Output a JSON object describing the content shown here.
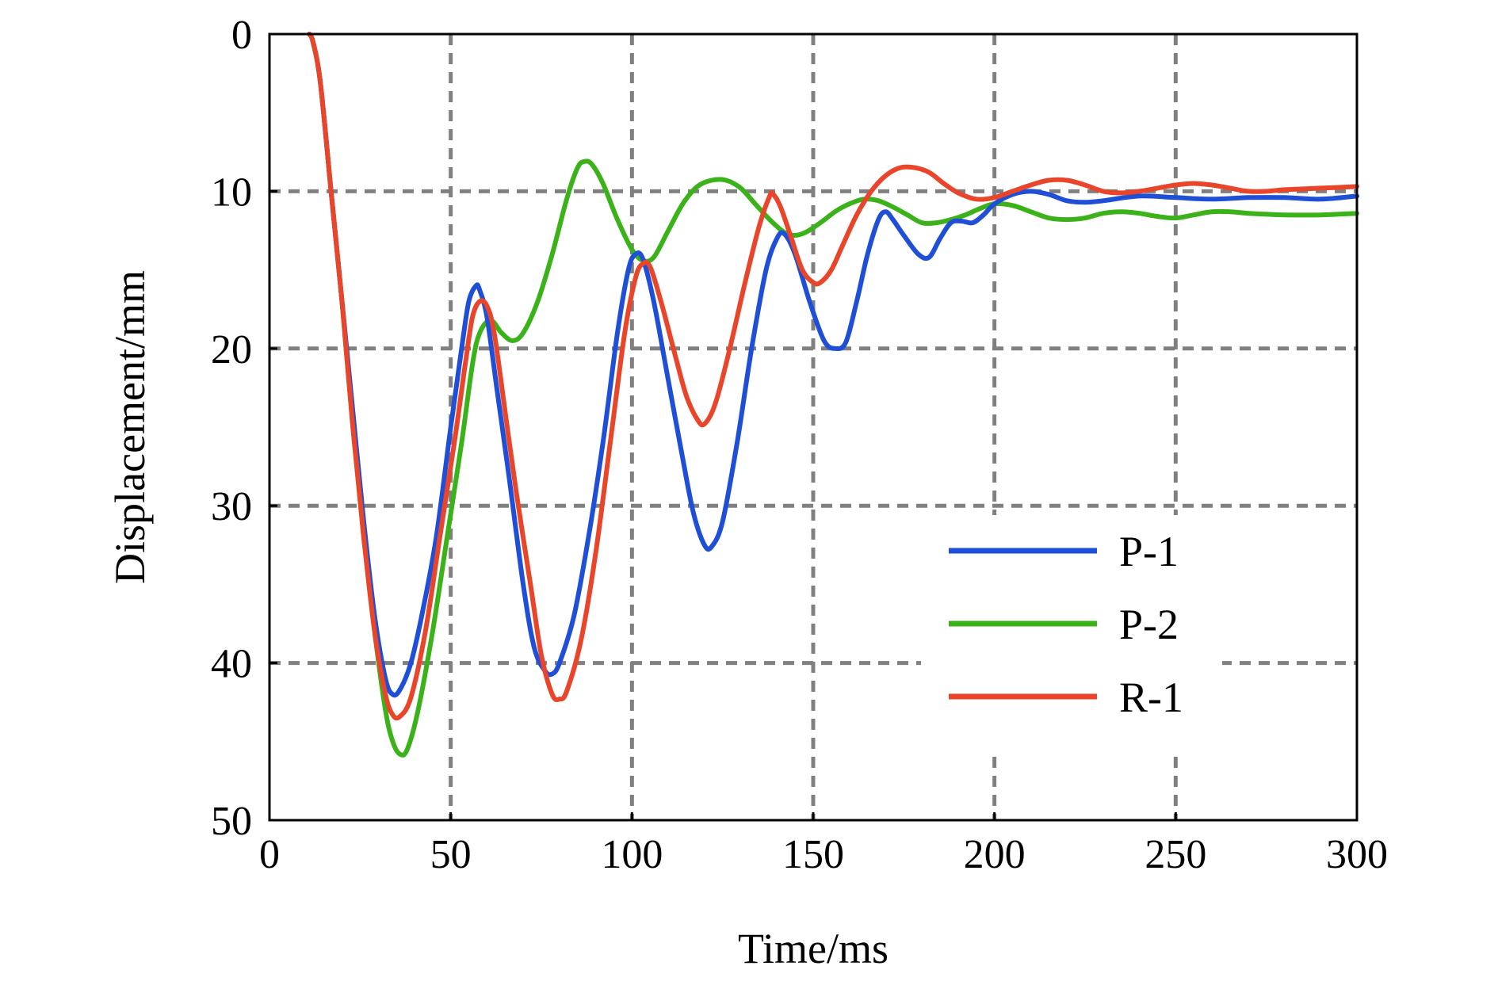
{
  "chart_data": {
    "type": "line",
    "xlabel": "Time/ms",
    "ylabel": "Displacement/mm",
    "xlim": [
      0,
      300
    ],
    "ylim": [
      0,
      50
    ],
    "y_inverted": true,
    "xticks": [
      0,
      50,
      100,
      150,
      200,
      250,
      300
    ],
    "yticks": [
      0,
      10,
      20,
      30,
      40,
      50
    ],
    "grid": true,
    "legend_position": "lower-right",
    "series": [
      {
        "name": "P-1",
        "color": "#1f4fd6",
        "points": [
          [
            11,
            0
          ],
          [
            12,
            0.5
          ],
          [
            14,
            3
          ],
          [
            17,
            10
          ],
          [
            20,
            17
          ],
          [
            23,
            24
          ],
          [
            26,
            31
          ],
          [
            29,
            37
          ],
          [
            32,
            41
          ],
          [
            34,
            42
          ],
          [
            36,
            41.7
          ],
          [
            39,
            40
          ],
          [
            42,
            37
          ],
          [
            46,
            32
          ],
          [
            50,
            25
          ],
          [
            53,
            20
          ],
          [
            55,
            17
          ],
          [
            57,
            16
          ],
          [
            58,
            16.3
          ],
          [
            60,
            18
          ],
          [
            63,
            23
          ],
          [
            66,
            28
          ],
          [
            70,
            35
          ],
          [
            73,
            39
          ],
          [
            76,
            40.5
          ],
          [
            78,
            40.7
          ],
          [
            80,
            40
          ],
          [
            84,
            37
          ],
          [
            88,
            32
          ],
          [
            92,
            26
          ],
          [
            96,
            19
          ],
          [
            99,
            15
          ],
          [
            101,
            14
          ],
          [
            103,
            14.3
          ],
          [
            106,
            17
          ],
          [
            110,
            22
          ],
          [
            114,
            27
          ],
          [
            117,
            30.5
          ],
          [
            120,
            32.5
          ],
          [
            122,
            32.6
          ],
          [
            125,
            31
          ],
          [
            129,
            26
          ],
          [
            133,
            20
          ],
          [
            137,
            15
          ],
          [
            140,
            13
          ],
          [
            142,
            12.7
          ],
          [
            145,
            14
          ],
          [
            149,
            17
          ],
          [
            153,
            19.5
          ],
          [
            156,
            20
          ],
          [
            159,
            19.6
          ],
          [
            162,
            17
          ],
          [
            165,
            14
          ],
          [
            168,
            11.8
          ],
          [
            170,
            11.3
          ],
          [
            172,
            11.8
          ],
          [
            175,
            12.8
          ],
          [
            179,
            14
          ],
          [
            182,
            14.2
          ],
          [
            185,
            13
          ],
          [
            188,
            12
          ],
          [
            191,
            11.9
          ],
          [
            194,
            12
          ],
          [
            197,
            11.5
          ],
          [
            200,
            10.8
          ],
          [
            205,
            10.2
          ],
          [
            210,
            10.0
          ],
          [
            215,
            10.2
          ],
          [
            220,
            10.6
          ],
          [
            225,
            10.7
          ],
          [
            230,
            10.6
          ],
          [
            240,
            10.3
          ],
          [
            250,
            10.4
          ],
          [
            260,
            10.5
          ],
          [
            270,
            10.4
          ],
          [
            280,
            10.4
          ],
          [
            290,
            10.5
          ],
          [
            300,
            10.3
          ]
        ]
      },
      {
        "name": "P-2",
        "color": "#3cb21a",
        "points": [
          [
            11,
            0
          ],
          [
            12,
            0.5
          ],
          [
            14,
            3
          ],
          [
            17,
            10
          ],
          [
            20,
            17
          ],
          [
            23,
            25
          ],
          [
            26,
            32
          ],
          [
            29,
            38
          ],
          [
            32,
            43
          ],
          [
            34,
            45
          ],
          [
            36,
            45.8
          ],
          [
            38,
            45.5
          ],
          [
            41,
            43
          ],
          [
            45,
            38
          ],
          [
            49,
            32
          ],
          [
            53,
            26
          ],
          [
            56,
            21
          ],
          [
            58,
            19
          ],
          [
            61,
            18.2
          ],
          [
            64,
            19
          ],
          [
            67,
            19.5
          ],
          [
            70,
            19
          ],
          [
            74,
            17
          ],
          [
            78,
            14
          ],
          [
            82,
            10.5
          ],
          [
            85,
            8.5
          ],
          [
            87,
            8.1
          ],
          [
            89,
            8.3
          ],
          [
            92,
            9.5
          ],
          [
            96,
            11.8
          ],
          [
            100,
            13.7
          ],
          [
            103,
            14.4
          ],
          [
            106,
            14.2
          ],
          [
            110,
            12.5
          ],
          [
            114,
            10.8
          ],
          [
            118,
            9.7
          ],
          [
            122,
            9.3
          ],
          [
            126,
            9.3
          ],
          [
            130,
            9.8
          ],
          [
            134,
            10.8
          ],
          [
            138,
            11.8
          ],
          [
            142,
            12.6
          ],
          [
            145,
            12.8
          ],
          [
            148,
            12.6
          ],
          [
            152,
            12.0
          ],
          [
            156,
            11.3
          ],
          [
            160,
            10.8
          ],
          [
            164,
            10.5
          ],
          [
            168,
            10.6
          ],
          [
            172,
            11.0
          ],
          [
            176,
            11.5
          ],
          [
            180,
            12.0
          ],
          [
            184,
            12.0
          ],
          [
            188,
            11.8
          ],
          [
            192,
            11.5
          ],
          [
            196,
            11.1
          ],
          [
            200,
            10.8
          ],
          [
            205,
            10.9
          ],
          [
            210,
            11.3
          ],
          [
            215,
            11.7
          ],
          [
            220,
            11.8
          ],
          [
            225,
            11.7
          ],
          [
            230,
            11.4
          ],
          [
            235,
            11.3
          ],
          [
            240,
            11.4
          ],
          [
            245,
            11.6
          ],
          [
            250,
            11.7
          ],
          [
            255,
            11.5
          ],
          [
            260,
            11.3
          ],
          [
            265,
            11.3
          ],
          [
            270,
            11.4
          ],
          [
            280,
            11.5
          ],
          [
            290,
            11.5
          ],
          [
            300,
            11.4
          ]
        ]
      },
      {
        "name": "R-1",
        "color": "#e8452a",
        "points": [
          [
            11,
            0
          ],
          [
            12,
            0.5
          ],
          [
            14,
            3
          ],
          [
            17,
            10
          ],
          [
            20,
            17
          ],
          [
            23,
            25
          ],
          [
            26,
            32
          ],
          [
            29,
            38
          ],
          [
            32,
            42
          ],
          [
            34,
            43.3
          ],
          [
            36,
            43.4
          ],
          [
            39,
            42.2
          ],
          [
            43,
            38
          ],
          [
            47,
            32
          ],
          [
            51,
            26
          ],
          [
            54,
            21
          ],
          [
            56,
            18
          ],
          [
            58,
            17
          ],
          [
            60,
            17.3
          ],
          [
            62,
            19
          ],
          [
            65,
            24
          ],
          [
            68,
            29
          ],
          [
            72,
            35
          ],
          [
            75,
            39.5
          ],
          [
            78,
            42
          ],
          [
            80,
            42.3
          ],
          [
            82,
            41.8
          ],
          [
            86,
            38.5
          ],
          [
            90,
            33
          ],
          [
            94,
            26
          ],
          [
            98,
            19
          ],
          [
            101,
            15.5
          ],
          [
            103,
            14.6
          ],
          [
            105,
            14.8
          ],
          [
            108,
            17
          ],
          [
            112,
            20.5
          ],
          [
            115,
            23
          ],
          [
            118,
            24.5
          ],
          [
            120,
            24.8
          ],
          [
            123,
            23.5
          ],
          [
            127,
            20
          ],
          [
            131,
            16
          ],
          [
            135,
            12.3
          ],
          [
            138,
            10.3
          ],
          [
            139,
            10.2
          ],
          [
            141,
            11
          ],
          [
            144,
            13
          ],
          [
            147,
            15
          ],
          [
            150,
            15.8
          ],
          [
            152,
            15.8
          ],
          [
            155,
            15
          ],
          [
            158,
            13.5
          ],
          [
            162,
            11.5
          ],
          [
            166,
            10
          ],
          [
            170,
            9
          ],
          [
            174,
            8.5
          ],
          [
            178,
            8.5
          ],
          [
            182,
            8.8
          ],
          [
            186,
            9.5
          ],
          [
            190,
            10.1
          ],
          [
            195,
            10.5
          ],
          [
            200,
            10.4
          ],
          [
            205,
            10.0
          ],
          [
            210,
            9.6
          ],
          [
            215,
            9.3
          ],
          [
            220,
            9.3
          ],
          [
            225,
            9.6
          ],
          [
            230,
            10.0
          ],
          [
            235,
            10.1
          ],
          [
            240,
            10.0
          ],
          [
            245,
            9.8
          ],
          [
            250,
            9.6
          ],
          [
            255,
            9.5
          ],
          [
            260,
            9.6
          ],
          [
            265,
            9.8
          ],
          [
            270,
            10.0
          ],
          [
            275,
            10.0
          ],
          [
            280,
            9.9
          ],
          [
            290,
            9.8
          ],
          [
            300,
            9.7
          ]
        ]
      }
    ]
  }
}
